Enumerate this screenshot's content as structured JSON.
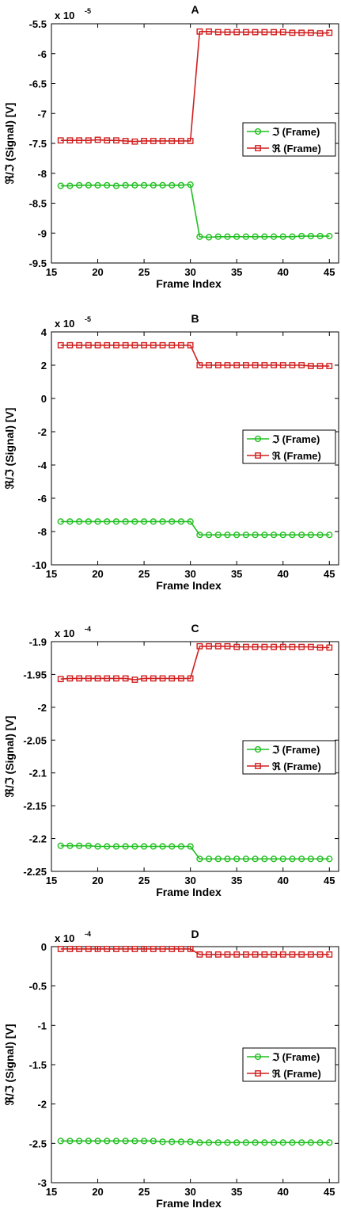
{
  "figure": {
    "colors": {
      "series_green": "#1fbf1f",
      "series_red": "#d11f1f",
      "axis": "#000000",
      "background": "#ffffff"
    }
  },
  "chart_data": [
    {
      "type": "line",
      "title": "A",
      "xlabel": "Frame Index",
      "ylabel": "ℜ/ℑ (Signal) [V]",
      "multiplier": {
        "base": "x 10",
        "exponent": "-5"
      },
      "xlim": [
        15,
        46
      ],
      "ylim": [
        -9.5,
        -5.5
      ],
      "xticks": [
        "15",
        "20",
        "25",
        "30",
        "35",
        "40",
        "45"
      ],
      "xtick_values": [
        15,
        20,
        25,
        30,
        35,
        40,
        45
      ],
      "yticks": [
        "-5.5",
        "-6",
        "-6.5",
        "-7",
        "-7.5",
        "-8",
        "-8.5",
        "-9",
        "-9.5"
      ],
      "ytick_values": [
        -5.5,
        -6,
        -6.5,
        -7,
        -7.5,
        -8,
        -8.5,
        -9,
        -9.5
      ],
      "legend_position": "right-middle",
      "x": [
        16,
        17,
        18,
        19,
        20,
        21,
        22,
        23,
        24,
        25,
        26,
        27,
        28,
        29,
        30,
        31,
        32,
        33,
        34,
        35,
        36,
        37,
        38,
        39,
        40,
        41,
        42,
        43,
        44,
        45
      ],
      "series": [
        {
          "name": "ℑ (Frame)",
          "color": "#1fbf1f",
          "marker": "circle",
          "values": [
            -8.21,
            -8.21,
            -8.2,
            -8.2,
            -8.2,
            -8.2,
            -8.21,
            -8.2,
            -8.2,
            -8.2,
            -8.2,
            -8.2,
            -8.2,
            -8.2,
            -8.19,
            -9.06,
            -9.07,
            -9.06,
            -9.06,
            -9.06,
            -9.06,
            -9.06,
            -9.06,
            -9.06,
            -9.06,
            -9.06,
            -9.05,
            -9.05,
            -9.05,
            -9.05
          ]
        },
        {
          "name": "ℜ (Frame)",
          "color": "#d11f1f",
          "marker": "square",
          "values": [
            -7.45,
            -7.45,
            -7.45,
            -7.45,
            -7.44,
            -7.45,
            -7.45,
            -7.46,
            -7.47,
            -7.46,
            -7.46,
            -7.46,
            -7.46,
            -7.46,
            -7.46,
            -5.63,
            -5.63,
            -5.64,
            -5.64,
            -5.64,
            -5.64,
            -5.64,
            -5.64,
            -5.64,
            -5.64,
            -5.65,
            -5.65,
            -5.65,
            -5.66,
            -5.65
          ]
        }
      ]
    },
    {
      "type": "line",
      "title": "B",
      "xlabel": "Frame Index",
      "ylabel": "ℜ/ℑ (Signal) [V]",
      "multiplier": {
        "base": "x 10",
        "exponent": "-5"
      },
      "xlim": [
        15,
        46
      ],
      "ylim": [
        -10,
        4
      ],
      "xticks": [
        "15",
        "20",
        "25",
        "30",
        "35",
        "40",
        "45"
      ],
      "xtick_values": [
        15,
        20,
        25,
        30,
        35,
        40,
        45
      ],
      "yticks": [
        "4",
        "2",
        "0",
        "-2",
        "-4",
        "-6",
        "-8",
        "-10"
      ],
      "ytick_values": [
        4,
        2,
        0,
        -2,
        -4,
        -6,
        -8,
        -10
      ],
      "legend_position": "right-middle",
      "x": [
        16,
        17,
        18,
        19,
        20,
        21,
        22,
        23,
        24,
        25,
        26,
        27,
        28,
        29,
        30,
        31,
        32,
        33,
        34,
        35,
        36,
        37,
        38,
        39,
        40,
        41,
        42,
        43,
        44,
        45
      ],
      "series": [
        {
          "name": "ℑ (Frame)",
          "color": "#1fbf1f",
          "marker": "circle",
          "values": [
            -7.4,
            -7.4,
            -7.4,
            -7.4,
            -7.4,
            -7.4,
            -7.4,
            -7.4,
            -7.4,
            -7.4,
            -7.4,
            -7.4,
            -7.4,
            -7.4,
            -7.4,
            -8.2,
            -8.2,
            -8.2,
            -8.2,
            -8.2,
            -8.2,
            -8.2,
            -8.2,
            -8.2,
            -8.2,
            -8.2,
            -8.2,
            -8.2,
            -8.2,
            -8.2
          ]
        },
        {
          "name": "ℜ (Frame)",
          "color": "#d11f1f",
          "marker": "square",
          "values": [
            3.2,
            3.2,
            3.2,
            3.2,
            3.2,
            3.2,
            3.2,
            3.2,
            3.2,
            3.2,
            3.2,
            3.2,
            3.2,
            3.2,
            3.2,
            2.0,
            2.0,
            2.0,
            2.0,
            2.0,
            2.0,
            2.0,
            2.0,
            2.0,
            2.0,
            2.0,
            2.0,
            1.95,
            1.95,
            1.95
          ]
        }
      ]
    },
    {
      "type": "line",
      "title": "C",
      "xlabel": "Frame Index",
      "ylabel": "ℜ/ℑ (Signal) [V]",
      "multiplier": {
        "base": "x 10",
        "exponent": "-4"
      },
      "xlim": [
        15,
        46
      ],
      "ylim": [
        -2.25,
        -1.9
      ],
      "xticks": [
        "15",
        "20",
        "25",
        "30",
        "35",
        "40",
        "45"
      ],
      "xtick_values": [
        15,
        20,
        25,
        30,
        35,
        40,
        45
      ],
      "yticks": [
        "-1.9",
        "-1.95",
        "-2",
        "-2.05",
        "-2.1",
        "-2.15",
        "-2.2",
        "-2.25"
      ],
      "ytick_values": [
        -1.9,
        -1.95,
        -2,
        -2.05,
        -2.1,
        -2.15,
        -2.2,
        -2.25
      ],
      "legend_position": "right-middle",
      "x": [
        16,
        17,
        18,
        19,
        20,
        21,
        22,
        23,
        24,
        25,
        26,
        27,
        28,
        29,
        30,
        31,
        32,
        33,
        34,
        35,
        36,
        37,
        38,
        39,
        40,
        41,
        42,
        43,
        44,
        45
      ],
      "series": [
        {
          "name": "ℑ (Frame)",
          "color": "#1fbf1f",
          "marker": "circle",
          "values": [
            -2.211,
            -2.211,
            -2.211,
            -2.211,
            -2.212,
            -2.212,
            -2.212,
            -2.212,
            -2.212,
            -2.212,
            -2.212,
            -2.212,
            -2.212,
            -2.212,
            -2.212,
            -2.231,
            -2.231,
            -2.231,
            -2.231,
            -2.231,
            -2.231,
            -2.231,
            -2.231,
            -2.231,
            -2.231,
            -2.231,
            -2.231,
            -2.231,
            -2.231,
            -2.231
          ]
        },
        {
          "name": "ℜ (Frame)",
          "color": "#d11f1f",
          "marker": "square",
          "values": [
            -1.957,
            -1.956,
            -1.956,
            -1.956,
            -1.956,
            -1.956,
            -1.956,
            -1.956,
            -1.958,
            -1.956,
            -1.956,
            -1.956,
            -1.956,
            -1.956,
            -1.956,
            -1.907,
            -1.907,
            -1.907,
            -1.907,
            -1.908,
            -1.908,
            -1.908,
            -1.908,
            -1.908,
            -1.908,
            -1.908,
            -1.908,
            -1.908,
            -1.909,
            -1.909
          ]
        }
      ]
    },
    {
      "type": "line",
      "title": "D",
      "xlabel": "Frame Index",
      "ylabel": "ℜ/ℑ (Signal) [V]",
      "multiplier": {
        "base": "x 10",
        "exponent": "-4"
      },
      "xlim": [
        15,
        46
      ],
      "ylim": [
        -3,
        0
      ],
      "xticks": [
        "15",
        "20",
        "25",
        "30",
        "35",
        "40",
        "45"
      ],
      "xtick_values": [
        15,
        20,
        25,
        30,
        35,
        40,
        45
      ],
      "yticks": [
        "0",
        "-0.5",
        "-1",
        "-1.5",
        "-2",
        "-2.5",
        "-3"
      ],
      "ytick_values": [
        0,
        -0.5,
        -1,
        -1.5,
        -2,
        -2.5,
        -3
      ],
      "legend_position": "right-middle",
      "x": [
        16,
        17,
        18,
        19,
        20,
        21,
        22,
        23,
        24,
        25,
        26,
        27,
        28,
        29,
        30,
        31,
        32,
        33,
        34,
        35,
        36,
        37,
        38,
        39,
        40,
        41,
        42,
        43,
        44,
        45
      ],
      "series": [
        {
          "name": "ℑ (Frame)",
          "color": "#1fbf1f",
          "marker": "circle",
          "values": [
            -2.47,
            -2.47,
            -2.47,
            -2.47,
            -2.47,
            -2.47,
            -2.47,
            -2.47,
            -2.47,
            -2.47,
            -2.47,
            -2.48,
            -2.48,
            -2.48,
            -2.48,
            -2.49,
            -2.49,
            -2.49,
            -2.49,
            -2.49,
            -2.49,
            -2.49,
            -2.49,
            -2.49,
            -2.49,
            -2.49,
            -2.49,
            -2.49,
            -2.49,
            -2.49
          ]
        },
        {
          "name": "ℜ (Frame)",
          "color": "#d11f1f",
          "marker": "square",
          "values": [
            -0.03,
            -0.03,
            -0.03,
            -0.03,
            -0.03,
            -0.03,
            -0.03,
            -0.03,
            -0.03,
            -0.03,
            -0.03,
            -0.03,
            -0.03,
            -0.03,
            -0.03,
            -0.1,
            -0.1,
            -0.1,
            -0.1,
            -0.1,
            -0.1,
            -0.1,
            -0.1,
            -0.1,
            -0.1,
            -0.1,
            -0.1,
            -0.1,
            -0.1,
            -0.1
          ]
        }
      ]
    }
  ]
}
